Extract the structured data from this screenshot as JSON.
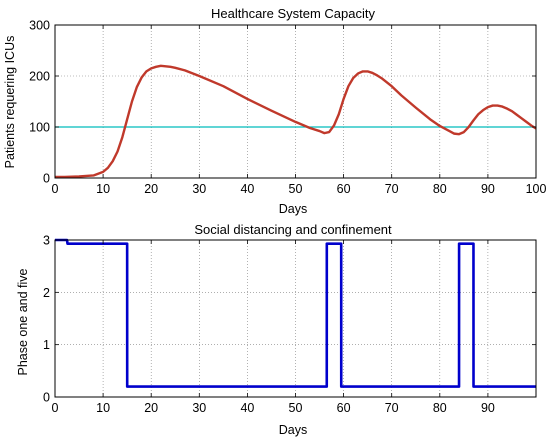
{
  "chart_data": [
    {
      "type": "line",
      "title": "Healthcare System Capacity",
      "xlabel": "Days",
      "ylabel": "Patients requering ICUs",
      "xlim": [
        0,
        100
      ],
      "ylim": [
        0,
        300
      ],
      "xticks": [
        0,
        10,
        20,
        30,
        40,
        50,
        60,
        70,
        80,
        90,
        100
      ],
      "yticks": [
        0,
        100,
        200,
        300
      ],
      "grid": true,
      "reference_line": {
        "y": 100,
        "color": "#00bcbc"
      },
      "series": [
        {
          "color": "#c0392b",
          "x": [
            0,
            2,
            5,
            8,
            10,
            11,
            12,
            13,
            14,
            15,
            16,
            17,
            18,
            19,
            20,
            21,
            22,
            23,
            24,
            25,
            27,
            30,
            35,
            40,
            45,
            50,
            53,
            55,
            56,
            57,
            58,
            59,
            60,
            61,
            62,
            63,
            64,
            65,
            66,
            67,
            68,
            70,
            72,
            75,
            78,
            80,
            82,
            83,
            84,
            85,
            86,
            87,
            88,
            89,
            90,
            91,
            92,
            93,
            94,
            95,
            96,
            97,
            98,
            99,
            100
          ],
          "y": [
            2,
            2,
            3,
            5,
            12,
            20,
            33,
            52,
            80,
            115,
            150,
            178,
            197,
            209,
            215,
            218,
            220,
            219,
            218,
            216,
            211,
            200,
            180,
            155,
            132,
            110,
            98,
            92,
            88,
            90,
            103,
            125,
            155,
            180,
            196,
            205,
            209,
            209,
            206,
            201,
            195,
            180,
            162,
            138,
            115,
            102,
            92,
            87,
            86,
            90,
            100,
            113,
            125,
            133,
            139,
            142,
            142,
            140,
            136,
            131,
            124,
            117,
            110,
            103,
            97
          ]
        }
      ]
    },
    {
      "type": "line",
      "title": "Social distancing and confinement",
      "xlabel": "Days",
      "ylabel": "Phase one and five",
      "xlim": [
        0,
        100
      ],
      "ylim": [
        0,
        3
      ],
      "xticks": [
        0,
        10,
        20,
        30,
        40,
        50,
        60,
        70,
        80,
        90
      ],
      "yticks": [
        0,
        1,
        2,
        3
      ],
      "grid": true,
      "series": [
        {
          "color": "#0000cc",
          "x": [
            0,
            2.5,
            2.6,
            15,
            15.01,
            56.5,
            56.51,
            59.5,
            59.51,
            84,
            84.01,
            87,
            87.01,
            100
          ],
          "y": [
            3.0,
            3.0,
            2.93,
            2.93,
            0.2,
            0.2,
            2.93,
            2.93,
            0.2,
            0.2,
            2.93,
            2.93,
            0.2,
            0.2
          ]
        }
      ]
    }
  ]
}
